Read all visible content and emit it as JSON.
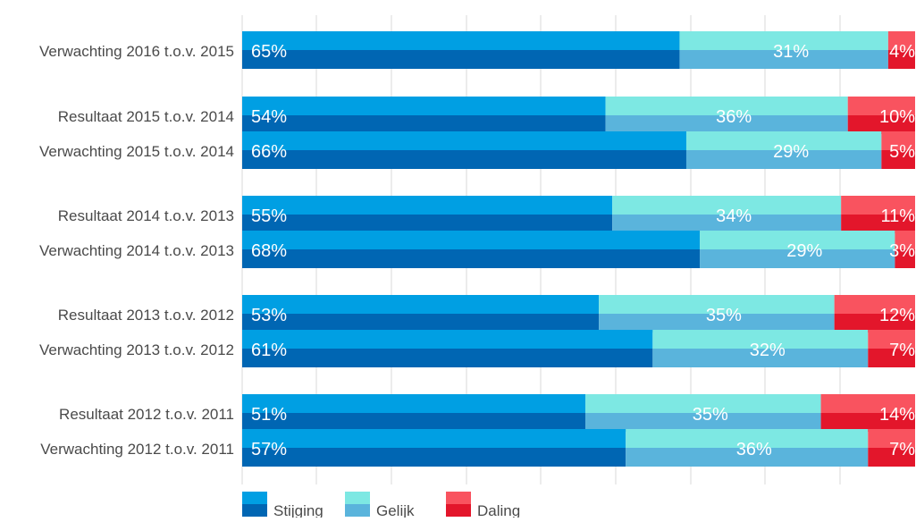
{
  "chart_data": {
    "type": "bar",
    "orientation": "horizontal",
    "stacked": true,
    "categories": [
      "Verwachting 2016 t.o.v. 2015",
      "Resultaat 2015 t.o.v. 2014",
      "Verwachting 2015 t.o.v. 2014",
      "Resultaat 2014 t.o.v. 2013",
      "Verwachting 2014 t.o.v. 2013",
      "Resultaat 2013 t.o.v. 2012",
      "Verwachting 2013 t.o.v. 2012",
      "Resultaat 2012 t.o.v. 2011",
      "Verwachting 2012 t.o.v. 2011"
    ],
    "series": [
      {
        "name": "Stijging",
        "values": [
          65,
          54,
          66,
          55,
          68,
          53,
          61,
          51,
          57
        ],
        "labels": [
          "65%",
          "54%",
          "66%",
          "55%",
          "68%",
          "53%",
          "61%",
          "51%",
          "57%"
        ]
      },
      {
        "name": "Gelijk",
        "values": [
          31,
          36,
          29,
          34,
          29,
          35,
          32,
          35,
          36
        ],
        "labels": [
          "31%",
          "36%",
          "29%",
          "34%",
          "29%",
          "35%",
          "32%",
          "35%",
          "36%"
        ]
      },
      {
        "name": "Daling",
        "values": [
          4,
          10,
          5,
          11,
          3,
          12,
          7,
          14,
          7
        ],
        "labels": [
          "4%",
          "10%",
          "5%",
          "11%",
          "3%",
          "12%",
          "7%",
          "14%",
          "7%"
        ]
      }
    ],
    "xlim": [
      0,
      100
    ],
    "grid": true,
    "legend_position": "bottom-left",
    "colors": {
      "Stijging": {
        "top": "#009fe3",
        "bottom": "#0066b3"
      },
      "Gelijk": {
        "top": "#7de8e3",
        "bottom": "#5ab4dc"
      },
      "Daling": {
        "top": "#f9535f",
        "bottom": "#e3162b"
      },
      "grid": "#d8d8d8",
      "label_text": "#4a4a4a",
      "value_text": "#ffffff"
    }
  }
}
